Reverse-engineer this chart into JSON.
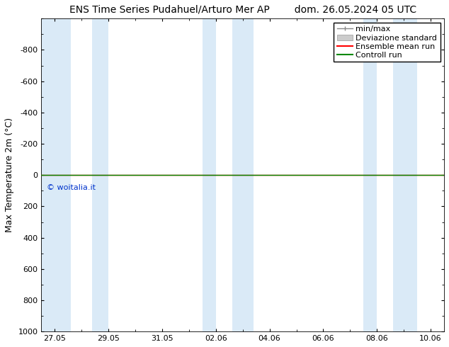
{
  "title": "ENS Time Series Pudahuel/Arturo Mer AP        dom. 26.05.2024 05 UTC",
  "ylabel": "Max Temperature 2m (°C)",
  "watermark": "© woitalia.it",
  "watermark_color": "#0033cc",
  "ylim_bottom": 1000,
  "ylim_top": -1000,
  "yticks": [
    -800,
    -600,
    -400,
    -200,
    0,
    200,
    400,
    600,
    800,
    1000
  ],
  "xtick_labels": [
    "27.05",
    "29.05",
    "31.05",
    "02.06",
    "04.06",
    "06.06",
    "08.06",
    "10.06"
  ],
  "x_positions": [
    0,
    2,
    4,
    6,
    8,
    10,
    12,
    14
  ],
  "x_min": -0.5,
  "x_max": 14.5,
  "shaded_bands": [
    {
      "x_start": -0.5,
      "x_end": 0.6
    },
    {
      "x_start": 1.4,
      "x_end": 2.0
    },
    {
      "x_start": 5.5,
      "x_end": 6.0
    },
    {
      "x_start": 6.6,
      "x_end": 7.4
    },
    {
      "x_start": 11.5,
      "x_end": 12.0
    },
    {
      "x_start": 12.6,
      "x_end": 13.5
    }
  ],
  "shaded_color": "#daeaf7",
  "horizontal_line_y": 0,
  "horizontal_line_color_ensemble": "#ff0000",
  "horizontal_line_color_control": "#008800",
  "legend_labels": [
    "min/max",
    "Deviazione standard",
    "Ensemble mean run",
    "Controll run"
  ],
  "legend_minmax_color": "#888888",
  "legend_dev_std_color": "#cccccc",
  "legend_ens_color": "#ff0000",
  "legend_ctrl_color": "#008800",
  "background_color": "#ffffff",
  "axes_bg_color": "#ffffff",
  "tick_color": "#000000",
  "font_size_title": 10,
  "font_size_axis": 9,
  "font_size_ticks": 8,
  "font_size_legend": 8,
  "font_size_watermark": 8
}
